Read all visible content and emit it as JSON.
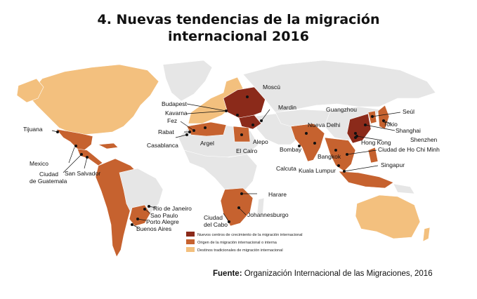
{
  "title_line1": "4. Nuevas tendencias de la migración",
  "title_line2": "internacional 2016",
  "colors": {
    "new_centers": "#8b2a1a",
    "origin": "#c6622f",
    "traditional": "#f3c07e",
    "other_land": "#e6e6e6",
    "borders": "#ffffff"
  },
  "legend": {
    "new_centers": "Nuevos centros de crecimiento de la migración internacional",
    "origin": "Origen de la migración internacional o interna",
    "traditional": "Destinos tradicionales de migración internacional"
  },
  "cities": {
    "moscu": "Moscú",
    "budapest": "Budapest",
    "kavarna": "Kavarna",
    "fez": "Fez",
    "rabat": "Rabat",
    "casablanca": "Casablanca",
    "argel": "Argel",
    "el_cairo": "El Cairo",
    "alepo": "Alepo",
    "mardin": "Mardin",
    "tijuana": "Tijuana",
    "mexico": "Mexico",
    "ciudad_guatemala": "Ciudad\nde Guatemala",
    "san_salvador": "San Salvador",
    "rio": "Rio de Janeiro",
    "sao_paulo": "Sao Paulo",
    "porto_alegre": "Porto Alegre",
    "buenos_aires": "Buenos Aires",
    "harare": "Harare",
    "johannesburgo": "Johannesburgo",
    "ciudad_del_cabo": "Ciudad\ndel Cabo",
    "nueva_delhi": "Nueva Delhi",
    "bombay": "Bombay",
    "calcuta": "Calcuta",
    "bangkok": "Bangkok",
    "kuala_lumpur": "Kuala Lumpur",
    "guangzhou": "Guangzhou",
    "hong_kong": "Hong Kong",
    "shenzhen": "Shenzhen",
    "shanghai": "Shanghai",
    "tokio": "Tokio",
    "seul": "Seúl",
    "ho_chi_minh": "Ciudad de Ho Chi Minh",
    "singapur": "Singapur"
  },
  "source": {
    "label": "Fuente:",
    "text": "Organización Internacional de las Migraciones, 2016"
  }
}
